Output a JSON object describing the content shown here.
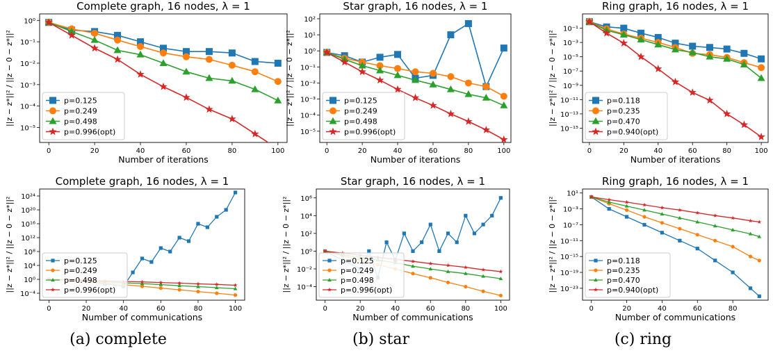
{
  "colors": {
    "blue": "#1f77b4",
    "orange": "#ff7f0e",
    "green": "#2ca02c",
    "red": "#d62728"
  },
  "captions": [
    "(a) complete",
    "(b) star",
    "(c) ring"
  ],
  "chart_data": [
    {
      "type": "line",
      "title": "Complete graph, 16 nodes, λ = 1",
      "xlabel": "Number of iterations",
      "ylabel": "||z − z*||² / ||z − 0 − z*||²",
      "scale": "log",
      "xlim": [
        -4,
        104
      ],
      "ylim": [
        2e-06,
        2
      ],
      "xticks": [
        0,
        20,
        40,
        60,
        80,
        100
      ],
      "yticks": [
        {
          "v": 1.0,
          "label": "10⁰"
        },
        {
          "v": 0.1,
          "label": "10⁻¹"
        },
        {
          "v": 0.01,
          "label": "10⁻²"
        },
        {
          "v": 0.001,
          "label": "10⁻³"
        },
        {
          "v": 0.0001,
          "label": "10⁻⁴"
        },
        {
          "v": 1e-05,
          "label": "10⁻⁵"
        }
      ],
      "legend": "lower-left",
      "x": [
        0,
        10,
        20,
        30,
        40,
        50,
        60,
        70,
        80,
        90,
        100
      ],
      "series": [
        {
          "name": "p=0.125",
          "marker": "square",
          "values": [
            0.8,
            0.35,
            0.3,
            0.2,
            0.1,
            0.05,
            0.035,
            0.035,
            0.03,
            0.012,
            0.01
          ]
        },
        {
          "name": "p=0.249",
          "marker": "circle",
          "values": [
            0.8,
            0.4,
            0.25,
            0.12,
            0.06,
            0.03,
            0.02,
            0.015,
            0.008,
            0.004,
            0.0014
          ]
        },
        {
          "name": "p=0.498",
          "marker": "triangle",
          "values": [
            0.8,
            0.3,
            0.12,
            0.04,
            0.025,
            0.01,
            0.004,
            0.002,
            0.0015,
            0.0006,
            0.00018
          ]
        },
        {
          "name": "p=0.996(opt)",
          "marker": "star",
          "values": [
            0.8,
            0.2,
            0.05,
            0.015,
            0.003,
            0.0008,
            0.00025,
            7e-05,
            2.5e-05,
            5e-06,
            1e-06
          ]
        }
      ]
    },
    {
      "type": "line",
      "title": "Star graph, 16 nodes, λ = 1",
      "xlabel": "Number of iterations",
      "ylabel": "||z − z*||² / ||z − 0 − z*||²",
      "scale": "log",
      "xlim": [
        -4,
        104
      ],
      "ylim": [
        2e-06,
        200
      ],
      "xticks": [
        0,
        20,
        40,
        60,
        80,
        100
      ],
      "yticks": [
        {
          "v": 100.0,
          "label": "10²"
        },
        {
          "v": 10.0,
          "label": "10¹"
        },
        {
          "v": 1.0,
          "label": "10⁰"
        },
        {
          "v": 0.1,
          "label": "10⁻¹"
        },
        {
          "v": 0.01,
          "label": "10⁻²"
        },
        {
          "v": 0.001,
          "label": "10⁻³"
        },
        {
          "v": 0.0001,
          "label": "10⁻⁴"
        },
        {
          "v": 1e-05,
          "label": "10⁻⁵"
        }
      ],
      "legend": "lower-left",
      "x": [
        0,
        10,
        20,
        30,
        40,
        50,
        60,
        70,
        80,
        90,
        100
      ],
      "series": [
        {
          "name": "p=0.125",
          "marker": "square",
          "values": [
            0.8,
            0.5,
            0.2,
            0.4,
            0.6,
            0.02,
            0.03,
            10,
            50,
            0.006,
            1.5
          ]
        },
        {
          "name": "p=0.249",
          "marker": "circle",
          "values": [
            0.8,
            0.35,
            0.2,
            0.12,
            0.08,
            0.05,
            0.04,
            0.025,
            0.01,
            0.006,
            0.0015
          ]
        },
        {
          "name": "p=0.498",
          "marker": "triangle",
          "values": [
            0.8,
            0.3,
            0.12,
            0.06,
            0.03,
            0.015,
            0.008,
            0.004,
            0.002,
            0.0012,
            0.0004
          ]
        },
        {
          "name": "p=0.996(opt)",
          "marker": "star",
          "values": [
            0.8,
            0.2,
            0.05,
            0.015,
            0.004,
            0.0012,
            0.0004,
            0.00012,
            4e-05,
            1.2e-05,
            3e-06
          ]
        }
      ]
    },
    {
      "type": "line",
      "title": "Ring graph, 16 nodes, λ = 1",
      "xlabel": "Number of iterations",
      "ylabel": "||z − z*||² / ||z − 0 − z*||²",
      "scale": "log",
      "xlim": [
        -4,
        104
      ],
      "ylim": [
        1e-17,
        10
      ],
      "xticks": [
        0,
        20,
        40,
        60,
        80,
        100
      ],
      "yticks": [
        {
          "v": 0.1,
          "label": "10⁻¹"
        },
        {
          "v": 0.001,
          "label": "10⁻³"
        },
        {
          "v": 1e-05,
          "label": "10⁻⁵"
        },
        {
          "v": 1e-07,
          "label": "10⁻⁷"
        },
        {
          "v": 1e-09,
          "label": "10⁻⁹"
        },
        {
          "v": 1e-11,
          "label": "10⁻¹¹"
        },
        {
          "v": 1e-13,
          "label": "10⁻¹³"
        },
        {
          "v": 1e-15,
          "label": "10⁻¹⁵"
        }
      ],
      "legend": "lower-left",
      "x": [
        0,
        10,
        20,
        30,
        40,
        50,
        60,
        70,
        80,
        90,
        100
      ],
      "series": [
        {
          "name": "p=0.118",
          "marker": "square",
          "values": [
            0.8,
            0.15,
            0.1,
            0.02,
            0.005,
            0.0008,
            0.0003,
            0.0002,
            0.00012,
            3e-05,
            5e-06
          ]
        },
        {
          "name": "p=0.235",
          "marker": "circle",
          "values": [
            0.8,
            0.08,
            0.015,
            0.004,
            0.001,
            0.0002,
            3e-05,
            2e-05,
            8e-06,
            1.5e-06,
            3e-07
          ]
        },
        {
          "name": "p=0.470",
          "marker": "triangle",
          "values": [
            0.8,
            0.05,
            0.012,
            0.0025,
            0.0005,
            0.0001,
            4e-05,
            1e-05,
            5e-06,
            8e-07,
            1e-08
          ]
        },
        {
          "name": "p=0.940(opt)",
          "marker": "star",
          "values": [
            0.8,
            0.02,
            0.0008,
            1e-05,
            2e-07,
            3e-09,
            1e-10,
            8e-12,
            1e-13,
            3e-15,
            6e-17
          ]
        }
      ]
    },
    {
      "type": "line",
      "title": "Complete graph, 16 nodes, λ = 1",
      "xlabel": "Number of communications",
      "ylabel": "||z − z*||² / ||z − 0 − z*||²",
      "scale": "log",
      "xlim": [
        -5,
        105
      ],
      "ylim": [
        1e-06,
        1e+26
      ],
      "xticks": [
        0,
        20,
        40,
        60,
        80,
        100
      ],
      "yticks": [
        {
          "v": 1e+24,
          "label": "10²⁴"
        },
        {
          "v": 1e+20,
          "label": "10²⁰"
        },
        {
          "v": 1e+16,
          "label": "10¹⁶"
        },
        {
          "v": 1000000000000.0,
          "label": "10¹²"
        },
        {
          "v": 100000000.0,
          "label": "10⁸"
        },
        {
          "v": 10000.0,
          "label": "10⁴"
        },
        {
          "v": 1.0,
          "label": "10⁰"
        },
        {
          "v": 0.0001,
          "label": "10⁻⁴"
        }
      ],
      "legend": "lower-left",
      "series": [
        {
          "name": "p=0.125",
          "marker": "square",
          "x": [
            0,
            10,
            20,
            30,
            40,
            45,
            50,
            55,
            60,
            65,
            70,
            75,
            80,
            85,
            90,
            95,
            100
          ],
          "values": [
            1,
            0.5,
            0.3,
            0.05,
            0.01,
            100.0,
            1000000.0,
            100000.0,
            1000000000.0,
            100000000.0,
            1000000000000.0,
            100000000000.0,
            1e+16,
            1000000000000000.0,
            1e+18,
            1e+20,
            1e+25
          ]
        },
        {
          "name": "p=0.249",
          "marker": "circle",
          "x": [
            0,
            10,
            20,
            30,
            40,
            50,
            60,
            70,
            80,
            90,
            100
          ],
          "values": [
            1,
            0.5,
            0.2,
            0.1,
            0.03,
            0.01,
            0.003,
            0.001,
            0.0003,
            0.0001,
            3e-05
          ]
        },
        {
          "name": "p=0.498",
          "marker": "triangle",
          "x": [
            0,
            10,
            20,
            30,
            40,
            50,
            60,
            70,
            80,
            90,
            100
          ],
          "values": [
            1,
            0.6,
            0.4,
            0.2,
            0.1,
            0.06,
            0.03,
            0.015,
            0.008,
            0.004,
            0.002
          ]
        },
        {
          "name": "p=0.996(opt)",
          "marker": "star",
          "x": [
            0,
            10,
            20,
            30,
            40,
            50,
            60,
            70,
            80,
            90,
            100
          ],
          "values": [
            1,
            0.7,
            0.5,
            0.35,
            0.25,
            0.18,
            0.12,
            0.08,
            0.05,
            0.035,
            0.02
          ]
        }
      ]
    },
    {
      "type": "line",
      "title": "Star graph, 16 nodes, λ = 1",
      "xlabel": "Number of communications",
      "ylabel": "||z − z*||² / ||z − 0 − z*||²",
      "scale": "log",
      "xlim": [
        -5,
        105
      ],
      "ylim": [
        3e-06,
        10000000.0
      ],
      "xticks": [
        0,
        20,
        40,
        60,
        80,
        100
      ],
      "yticks": [
        {
          "v": 1000000.0,
          "label": "10⁶"
        },
        {
          "v": 10000.0,
          "label": "10⁴"
        },
        {
          "v": 100.0,
          "label": "10²"
        },
        {
          "v": 1.0,
          "label": "10⁰"
        },
        {
          "v": 0.01,
          "label": "10⁻²"
        },
        {
          "v": 0.0001,
          "label": "10⁻⁴"
        }
      ],
      "legend": "lower-left",
      "series": [
        {
          "name": "p=0.125",
          "marker": "square",
          "x": [
            0,
            10,
            20,
            25,
            30,
            35,
            40,
            45,
            50,
            55,
            60,
            65,
            70,
            75,
            80,
            85,
            90,
            95,
            100
          ],
          "values": [
            1,
            0.1,
            0.01,
            1,
            0.001,
            10,
            0.1,
            100,
            1,
            10,
            1000,
            1,
            100,
            10,
            10000.0,
            100,
            1000.0,
            10000.0,
            1000000.0
          ]
        },
        {
          "name": "p=0.249",
          "marker": "circle",
          "x": [
            0,
            10,
            20,
            30,
            40,
            50,
            60,
            70,
            80,
            90,
            100
          ],
          "values": [
            1,
            0.3,
            0.1,
            0.03,
            0.01,
            0.003,
            0.001,
            0.0003,
            0.0001,
            3e-05,
            1e-05
          ]
        },
        {
          "name": "p=0.498",
          "marker": "triangle",
          "x": [
            0,
            10,
            20,
            30,
            40,
            50,
            60,
            70,
            80,
            90,
            100
          ],
          "values": [
            1,
            0.4,
            0.2,
            0.1,
            0.05,
            0.02,
            0.01,
            0.005,
            0.003,
            0.0015,
            0.0008
          ]
        },
        {
          "name": "p=0.996(opt)",
          "marker": "star",
          "x": [
            0,
            10,
            20,
            30,
            40,
            50,
            60,
            70,
            80,
            90,
            100
          ],
          "values": [
            1,
            0.6,
            0.35,
            0.2,
            0.12,
            0.07,
            0.04,
            0.025,
            0.015,
            0.008,
            0.005
          ]
        }
      ]
    },
    {
      "type": "line",
      "title": "Ring graph, 16 nodes, λ = 1",
      "xlabel": "Number of communications",
      "ylabel": "||z − z*||² / ||z − 0 − z*||²",
      "scale": "log",
      "xlim": [
        -5,
        100
      ],
      "ylim": [
        1e-26,
        100
      ],
      "xticks": [
        0,
        20,
        40,
        60,
        80
      ],
      "yticks": [
        {
          "v": 10.0,
          "label": "10¹"
        },
        {
          "v": 0.001,
          "label": "10⁻³"
        },
        {
          "v": 1e-07,
          "label": "10⁻⁷"
        },
        {
          "v": 1e-11,
          "label": "10⁻¹¹"
        },
        {
          "v": 1e-15,
          "label": "10⁻¹⁵"
        },
        {
          "v": 1e-19,
          "label": "10⁻¹⁹"
        },
        {
          "v": 1e-23,
          "label": "10⁻²³"
        }
      ],
      "legend": "lower-left",
      "series": [
        {
          "name": "p=0.118",
          "marker": "square",
          "x": [
            0,
            10,
            20,
            30,
            40,
            50,
            60,
            70,
            80,
            90,
            95
          ],
          "values": [
            1,
            0.001,
            1e-05,
            1e-07,
            1e-09,
            1e-11,
            1e-13,
            1e-16,
            1e-19,
            1e-23,
            1e-25
          ]
        },
        {
          "name": "p=0.235",
          "marker": "circle",
          "x": [
            0,
            10,
            20,
            30,
            40,
            50,
            60,
            70,
            80,
            90,
            95
          ],
          "values": [
            1,
            0.02,
            0.0005,
            1e-05,
            3e-07,
            1e-08,
            3e-10,
            1e-11,
            3e-13,
            1e-15,
            1e-16
          ]
        },
        {
          "name": "p=0.470",
          "marker": "triangle",
          "x": [
            0,
            10,
            20,
            30,
            40,
            50,
            60,
            70,
            80,
            90,
            95
          ],
          "values": [
            1,
            0.05,
            0.005,
            0.0005,
            5e-05,
            5e-06,
            5e-07,
            5e-08,
            5e-09,
            5e-10,
            1e-10
          ]
        },
        {
          "name": "p=0.940(opt)",
          "marker": "star",
          "x": [
            0,
            10,
            20,
            30,
            40,
            50,
            60,
            70,
            80,
            90,
            95
          ],
          "values": [
            1,
            0.2,
            0.05,
            0.01,
            0.002,
            0.0005,
            0.0001,
            2e-05,
            5e-06,
            1e-06,
            5e-07
          ]
        }
      ]
    }
  ]
}
